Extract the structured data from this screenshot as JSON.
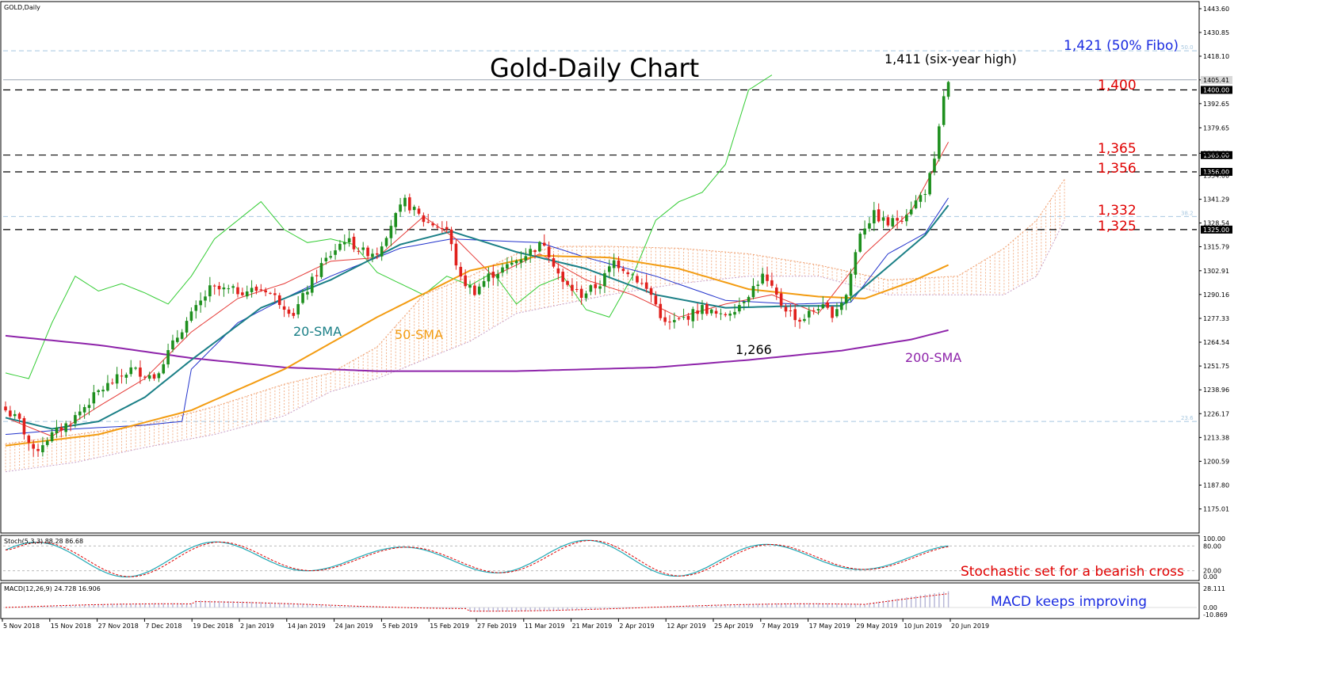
{
  "window_title": "GOLD,Daily",
  "colors": {
    "bull_candle": "#1e8f1e",
    "bear_candle": "#e0201c",
    "sma20": "#1a7f86",
    "sma50": "#f39c12",
    "sma200": "#8e24aa",
    "tenkan": "#e53935",
    "kijun": "#2233cc",
    "chikou": "#33cc33",
    "cloud": "#f0a070",
    "level_red": "#e00000",
    "fibo_blue": "#1a2be0",
    "stoch_main": "#1fa8b4",
    "stoch_signal": "#e00000",
    "macd_hist": "#b9b9d8",
    "macd_signal": "#e00000"
  },
  "chart_data": {
    "type": "candlestick",
    "title": "Gold-Daily Chart",
    "symbol": "GOLD,Daily",
    "ylim": [
      1162.5,
      1447
    ],
    "y_ticks": [
      "1443.60",
      "1430.85",
      "1418.10",
      "1405.41",
      "1392.65",
      "1379.65",
      "1366.00",
      "1354.00",
      "1341.29",
      "1328.54",
      "1315.79",
      "1302.91",
      "1290.16",
      "1277.33",
      "1264.54",
      "1251.75",
      "1238.96",
      "1226.17",
      "1213.38",
      "1200.59",
      "1187.80",
      "1175.01"
    ],
    "x_ticks": [
      "5 Nov 2018",
      "15 Nov 2018",
      "27 Nov 2018",
      "7 Dec 2018",
      "19 Dec 2018",
      "2 Jan 2019",
      "14 Jan 2019",
      "24 Jan 2019",
      "5 Feb 2019",
      "15 Feb 2019",
      "27 Feb 2019",
      "11 Mar 2019",
      "21 Mar 2019",
      "2 Apr 2019",
      "12 Apr 2019",
      "25 Apr 2019",
      "7 May 2019",
      "17 May 2019",
      "29 May 2019",
      "10 Jun 2019",
      "20 Jun 2019"
    ],
    "current_price_label": "1405.41",
    "close_keypoints": [
      {
        "i": 0,
        "c": 1228
      },
      {
        "i": 3,
        "c": 1222
      },
      {
        "i": 6,
        "c": 1205
      },
      {
        "i": 9,
        "c": 1213
      },
      {
        "i": 14,
        "c": 1222
      },
      {
        "i": 20,
        "c": 1238
      },
      {
        "i": 27,
        "c": 1250
      },
      {
        "i": 32,
        "c": 1246
      },
      {
        "i": 38,
        "c": 1272
      },
      {
        "i": 44,
        "c": 1293
      },
      {
        "i": 50,
        "c": 1292
      },
      {
        "i": 56,
        "c": 1293
      },
      {
        "i": 62,
        "c": 1280
      },
      {
        "i": 68,
        "c": 1306
      },
      {
        "i": 73,
        "c": 1320
      },
      {
        "i": 77,
        "c": 1313
      },
      {
        "i": 80,
        "c": 1313
      },
      {
        "i": 83,
        "c": 1328
      },
      {
        "i": 86,
        "c": 1340
      },
      {
        "i": 90,
        "c": 1330
      },
      {
        "i": 95,
        "c": 1325
      },
      {
        "i": 98,
        "c": 1298
      },
      {
        "i": 101,
        "c": 1292
      },
      {
        "i": 104,
        "c": 1300
      },
      {
        "i": 108,
        "c": 1305
      },
      {
        "i": 112,
        "c": 1312
      },
      {
        "i": 116,
        "c": 1318
      },
      {
        "i": 120,
        "c": 1296
      },
      {
        "i": 124,
        "c": 1290
      },
      {
        "i": 128,
        "c": 1296
      },
      {
        "i": 131,
        "c": 1308
      },
      {
        "i": 135,
        "c": 1301
      },
      {
        "i": 139,
        "c": 1290
      },
      {
        "i": 142,
        "c": 1274
      },
      {
        "i": 145,
        "c": 1276
      },
      {
        "i": 150,
        "c": 1283
      },
      {
        "i": 154,
        "c": 1278
      },
      {
        "i": 158,
        "c": 1285
      },
      {
        "i": 163,
        "c": 1300
      },
      {
        "i": 167,
        "c": 1285
      },
      {
        "i": 171,
        "c": 1276
      },
      {
        "i": 175,
        "c": 1284
      },
      {
        "i": 178,
        "c": 1280
      },
      {
        "i": 181,
        "c": 1290
      },
      {
        "i": 184,
        "c": 1324
      },
      {
        "i": 187,
        "c": 1333
      },
      {
        "i": 190,
        "c": 1328
      },
      {
        "i": 193,
        "c": 1332
      },
      {
        "i": 196,
        "c": 1340
      },
      {
        "i": 198,
        "c": 1346
      },
      {
        "i": 200,
        "c": 1361
      },
      {
        "i": 202,
        "c": 1397
      },
      {
        "i": 203,
        "c": 1403
      }
    ],
    "num_bars": 204,
    "sma20_keypoints": [
      {
        "i": 0,
        "v": 1224
      },
      {
        "i": 10,
        "v": 1218
      },
      {
        "i": 20,
        "v": 1222
      },
      {
        "i": 30,
        "v": 1235
      },
      {
        "i": 40,
        "v": 1255
      },
      {
        "i": 55,
        "v": 1283
      },
      {
        "i": 70,
        "v": 1298
      },
      {
        "i": 85,
        "v": 1317
      },
      {
        "i": 96,
        "v": 1324
      },
      {
        "i": 110,
        "v": 1313
      },
      {
        "i": 125,
        "v": 1304
      },
      {
        "i": 140,
        "v": 1290
      },
      {
        "i": 155,
        "v": 1283
      },
      {
        "i": 170,
        "v": 1284
      },
      {
        "i": 180,
        "v": 1284
      },
      {
        "i": 190,
        "v": 1305
      },
      {
        "i": 198,
        "v": 1322
      },
      {
        "i": 203,
        "v": 1338
      }
    ],
    "sma50_keypoints": [
      {
        "i": 0,
        "v": 1209
      },
      {
        "i": 20,
        "v": 1215
      },
      {
        "i": 40,
        "v": 1228
      },
      {
        "i": 60,
        "v": 1250
      },
      {
        "i": 80,
        "v": 1278
      },
      {
        "i": 100,
        "v": 1303
      },
      {
        "i": 115,
        "v": 1311
      },
      {
        "i": 130,
        "v": 1310
      },
      {
        "i": 145,
        "v": 1304
      },
      {
        "i": 160,
        "v": 1293
      },
      {
        "i": 175,
        "v": 1289
      },
      {
        "i": 185,
        "v": 1288
      },
      {
        "i": 195,
        "v": 1297
      },
      {
        "i": 203,
        "v": 1306
      }
    ],
    "sma200_keypoints": [
      {
        "i": 0,
        "v": 1268
      },
      {
        "i": 20,
        "v": 1263
      },
      {
        "i": 40,
        "v": 1256
      },
      {
        "i": 60,
        "v": 1251
      },
      {
        "i": 80,
        "v": 1249
      },
      {
        "i": 110,
        "v": 1249
      },
      {
        "i": 140,
        "v": 1251
      },
      {
        "i": 160,
        "v": 1255
      },
      {
        "i": 180,
        "v": 1260
      },
      {
        "i": 195,
        "v": 1266
      },
      {
        "i": 203,
        "v": 1271
      }
    ],
    "chikou_keypoints": [
      {
        "i": 0,
        "v": 1248
      },
      {
        "i": 5,
        "v": 1245
      },
      {
        "i": 10,
        "v": 1275
      },
      {
        "i": 15,
        "v": 1300
      },
      {
        "i": 20,
        "v": 1292
      },
      {
        "i": 25,
        "v": 1296
      },
      {
        "i": 30,
        "v": 1291
      },
      {
        "i": 35,
        "v": 1285
      },
      {
        "i": 40,
        "v": 1300
      },
      {
        "i": 45,
        "v": 1320
      },
      {
        "i": 50,
        "v": 1330
      },
      {
        "i": 55,
        "v": 1340
      },
      {
        "i": 60,
        "v": 1325
      },
      {
        "i": 65,
        "v": 1318
      },
      {
        "i": 70,
        "v": 1320
      },
      {
        "i": 75,
        "v": 1317
      },
      {
        "i": 80,
        "v": 1302
      },
      {
        "i": 85,
        "v": 1296
      },
      {
        "i": 90,
        "v": 1290
      },
      {
        "i": 95,
        "v": 1300
      },
      {
        "i": 100,
        "v": 1295
      },
      {
        "i": 105,
        "v": 1302
      },
      {
        "i": 110,
        "v": 1285
      },
      {
        "i": 115,
        "v": 1295
      },
      {
        "i": 120,
        "v": 1300
      },
      {
        "i": 125,
        "v": 1282
      },
      {
        "i": 130,
        "v": 1278
      },
      {
        "i": 135,
        "v": 1300
      },
      {
        "i": 140,
        "v": 1330
      },
      {
        "i": 145,
        "v": 1340
      },
      {
        "i": 150,
        "v": 1345
      },
      {
        "i": 155,
        "v": 1360
      },
      {
        "i": 160,
        "v": 1400
      },
      {
        "i": 165,
        "v": 1408
      }
    ],
    "tenkan_keypoints": [
      {
        "i": 0,
        "v": 1224
      },
      {
        "i": 10,
        "v": 1214
      },
      {
        "i": 20,
        "v": 1230
      },
      {
        "i": 30,
        "v": 1245
      },
      {
        "i": 40,
        "v": 1270
      },
      {
        "i": 50,
        "v": 1288
      },
      {
        "i": 60,
        "v": 1296
      },
      {
        "i": 70,
        "v": 1308
      },
      {
        "i": 80,
        "v": 1310
      },
      {
        "i": 90,
        "v": 1332
      },
      {
        "i": 97,
        "v": 1320
      },
      {
        "i": 105,
        "v": 1300
      },
      {
        "i": 115,
        "v": 1312
      },
      {
        "i": 125,
        "v": 1298
      },
      {
        "i": 135,
        "v": 1290
      },
      {
        "i": 145,
        "v": 1278
      },
      {
        "i": 155,
        "v": 1285
      },
      {
        "i": 165,
        "v": 1290
      },
      {
        "i": 175,
        "v": 1280
      },
      {
        "i": 185,
        "v": 1312
      },
      {
        "i": 195,
        "v": 1335
      },
      {
        "i": 203,
        "v": 1372
      }
    ],
    "kijun_keypoints": [
      {
        "i": 0,
        "v": 1215
      },
      {
        "i": 15,
        "v": 1218
      },
      {
        "i": 30,
        "v": 1220
      },
      {
        "i": 38,
        "v": 1222
      },
      {
        "i": 40,
        "v": 1250
      },
      {
        "i": 50,
        "v": 1275
      },
      {
        "i": 60,
        "v": 1288
      },
      {
        "i": 70,
        "v": 1300
      },
      {
        "i": 85,
        "v": 1315
      },
      {
        "i": 96,
        "v": 1320
      },
      {
        "i": 115,
        "v": 1318
      },
      {
        "i": 125,
        "v": 1310
      },
      {
        "i": 140,
        "v": 1300
      },
      {
        "i": 155,
        "v": 1287
      },
      {
        "i": 170,
        "v": 1285
      },
      {
        "i": 182,
        "v": 1286
      },
      {
        "i": 190,
        "v": 1312
      },
      {
        "i": 198,
        "v": 1323
      },
      {
        "i": 203,
        "v": 1342
      }
    ],
    "cloud_keypoints": [
      {
        "i": 0,
        "a": 1210,
        "b": 1195
      },
      {
        "i": 15,
        "a": 1215,
        "b": 1200
      },
      {
        "i": 30,
        "a": 1220,
        "b": 1208
      },
      {
        "i": 45,
        "a": 1230,
        "b": 1215
      },
      {
        "i": 60,
        "a": 1242,
        "b": 1225
      },
      {
        "i": 70,
        "a": 1248,
        "b": 1238
      },
      {
        "i": 80,
        "a": 1262,
        "b": 1245
      },
      {
        "i": 90,
        "a": 1290,
        "b": 1255
      },
      {
        "i": 100,
        "a": 1300,
        "b": 1265
      },
      {
        "i": 110,
        "a": 1312,
        "b": 1280
      },
      {
        "i": 120,
        "a": 1316,
        "b": 1285
      },
      {
        "i": 130,
        "a": 1316,
        "b": 1290
      },
      {
        "i": 145,
        "a": 1315,
        "b": 1296
      },
      {
        "i": 160,
        "a": 1312,
        "b": 1300
      },
      {
        "i": 175,
        "a": 1306,
        "b": 1300
      },
      {
        "i": 190,
        "a": 1298,
        "b": 1290
      },
      {
        "i": 205,
        "a": 1300,
        "b": 1290
      },
      {
        "i": 215,
        "a": 1315,
        "b": 1290
      },
      {
        "i": 222,
        "a": 1330,
        "b": 1300
      },
      {
        "i": 228,
        "a": 1352,
        "b": 1330
      }
    ],
    "levels": [
      {
        "value": 1400,
        "label": "1,400",
        "tag": "1400.00"
      },
      {
        "value": 1365,
        "label": "1,365",
        "tag": "1365.00"
      },
      {
        "value": 1356,
        "label": "1,356",
        "tag": "1356.00"
      },
      {
        "value": 1325,
        "label": "1,325",
        "tag": "1325.00"
      }
    ],
    "fibo_levels": [
      {
        "value": 1421,
        "tag": "50.0"
      },
      {
        "value": 1332,
        "tag": "38.2"
      },
      {
        "value": 1222,
        "tag": "23.6"
      }
    ],
    "current_price_line": 1405.41
  },
  "annotations": {
    "title": "Gold-Daily Chart",
    "fibo": "1,421 (50% Fibo)",
    "six_year_high": "1,411 (six-year high)",
    "level_1400": "1,400",
    "level_1365": "1,365",
    "level_1356": "1,356",
    "level_1332": "1,332",
    "level_1325": "1,325",
    "low_1266": "1,266",
    "sma20": "20-SMA",
    "sma50": "50-SMA",
    "sma200": "200-SMA"
  },
  "stoch": {
    "label": "Stoch(5,3,3) 88.28 86.68",
    "y_ticks": [
      "100.00",
      "80.00",
      "20.00",
      "0.00"
    ],
    "annotation": "Stochastic set for a bearish cross"
  },
  "macd": {
    "label": "MACD(12,26,9) 24.728 16.906",
    "y_ticks": [
      "28.111",
      "0.00",
      "-10.869"
    ],
    "annotation": "MACD keeps improving"
  }
}
